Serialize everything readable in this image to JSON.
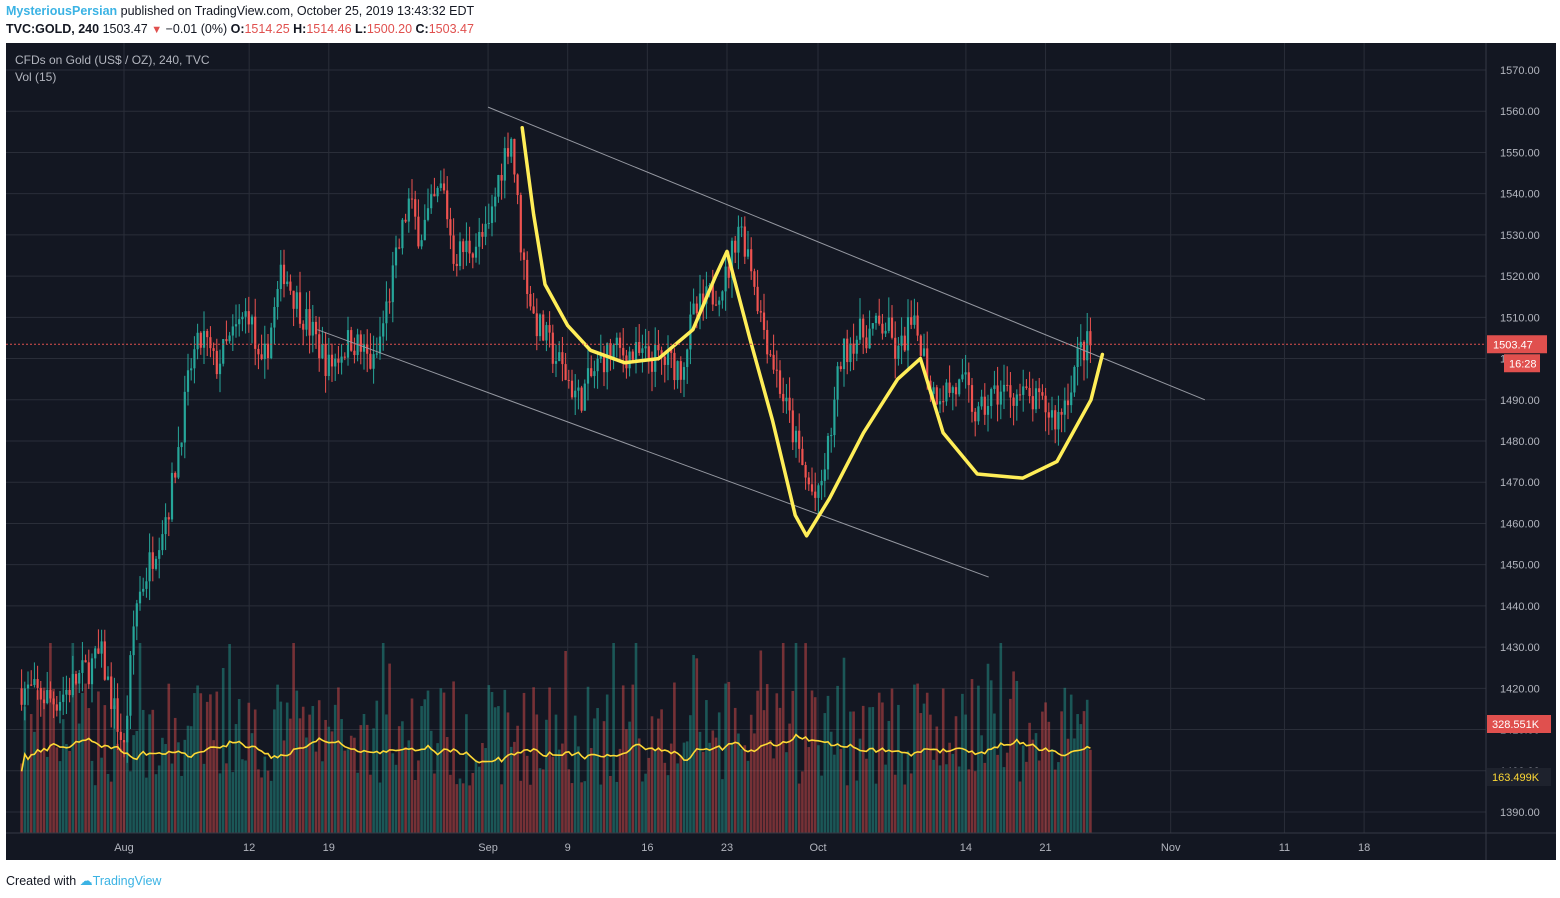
{
  "header": {
    "author": "MysteriousPersian",
    "published_text": "published on TradingView.com, October 25, 2019 13:43:32 EDT",
    "symbol": "TVC:GOLD, 240",
    "last": "1503.47",
    "change": "−0.01 (0%)",
    "open_label": "O:",
    "open": "1514.25",
    "high_label": "H:",
    "high": "1514.46",
    "low_label": "L:",
    "low": "1500.20",
    "close_label": "C:",
    "close": "1503.47"
  },
  "legend": {
    "title": "CFDs on Gold (US$ / OZ), 240, TVC",
    "vol": "Vol (15)"
  },
  "footer": {
    "created": "Created with",
    "brand": "TradingView"
  },
  "colors": {
    "background": "#131722",
    "grid": "#2a2e39",
    "up": "#26a69a",
    "down": "#ef5350",
    "drawing": "#ffee58",
    "trendline": "#9598a1",
    "axis_text": "#b2b5be",
    "price_label": "#e0504e",
    "vol_ma_label": "#fdd835"
  },
  "chart_data": {
    "type": "candlestick",
    "title": "CFDs on Gold (US$ / OZ), 240, TVC",
    "ylim": [
      1385,
      1575
    ],
    "y_ticks": [
      1390,
      1400,
      1410,
      1420,
      1430,
      1440,
      1450,
      1460,
      1470,
      1480,
      1490,
      1500,
      1510,
      1520,
      1530,
      1540,
      1550,
      1560,
      1570
    ],
    "y_tick_labels": [
      "1390.00",
      "1400.00",
      "1410.00",
      "1420.00",
      "1430.00",
      "1440.00",
      "1450.00",
      "1460.00",
      "1470.00",
      "1480.00",
      "1490.00",
      "1500.00",
      "1510.00",
      "1520.00",
      "1530.00",
      "1540.00",
      "1550.00",
      "1560.00",
      "1570.00"
    ],
    "x_ticks": [
      {
        "label": "Aug",
        "date": "2019-08-01"
      },
      {
        "label": "12",
        "date": "2019-08-12"
      },
      {
        "label": "19",
        "date": "2019-08-19"
      },
      {
        "label": "Sep",
        "date": "2019-09-02"
      },
      {
        "label": "9",
        "date": "2019-09-09"
      },
      {
        "label": "16",
        "date": "2019-09-16"
      },
      {
        "label": "23",
        "date": "2019-09-23"
      },
      {
        "label": "Oct",
        "date": "2019-10-01"
      },
      {
        "label": "14",
        "date": "2019-10-14"
      },
      {
        "label": "21",
        "date": "2019-10-21"
      },
      {
        "label": "Nov",
        "date": "2019-11-01"
      },
      {
        "label": "11",
        "date": "2019-11-11"
      },
      {
        "label": "18",
        "date": "2019-11-18"
      }
    ],
    "price_path": [
      {
        "date": "2019-07-23",
        "price": 1420
      },
      {
        "date": "2019-07-26",
        "price": 1417
      },
      {
        "date": "2019-07-30",
        "price": 1428
      },
      {
        "date": "2019-08-01",
        "price": 1405
      },
      {
        "date": "2019-08-02",
        "price": 1440
      },
      {
        "date": "2019-08-05",
        "price": 1465
      },
      {
        "date": "2019-08-07",
        "price": 1500
      },
      {
        "date": "2019-08-08",
        "price": 1505
      },
      {
        "date": "2019-08-09",
        "price": 1498
      },
      {
        "date": "2019-08-12",
        "price": 1512
      },
      {
        "date": "2019-08-13",
        "price": 1495
      },
      {
        "date": "2019-08-15",
        "price": 1522
      },
      {
        "date": "2019-08-16",
        "price": 1515
      },
      {
        "date": "2019-08-19",
        "price": 1498
      },
      {
        "date": "2019-08-21",
        "price": 1505
      },
      {
        "date": "2019-08-23",
        "price": 1498
      },
      {
        "date": "2019-08-26",
        "price": 1538
      },
      {
        "date": "2019-08-27",
        "price": 1530
      },
      {
        "date": "2019-08-29",
        "price": 1542
      },
      {
        "date": "2019-08-30",
        "price": 1525
      },
      {
        "date": "2019-09-02",
        "price": 1530
      },
      {
        "date": "2019-09-03",
        "price": 1545
      },
      {
        "date": "2019-09-04",
        "price": 1555
      },
      {
        "date": "2019-09-05",
        "price": 1525
      },
      {
        "date": "2019-09-06",
        "price": 1510
      },
      {
        "date": "2019-09-09",
        "price": 1495
      },
      {
        "date": "2019-09-10",
        "price": 1490
      },
      {
        "date": "2019-09-12",
        "price": 1500
      },
      {
        "date": "2019-09-13",
        "price": 1502
      },
      {
        "date": "2019-09-16",
        "price": 1500
      },
      {
        "date": "2019-09-17",
        "price": 1500
      },
      {
        "date": "2019-09-19",
        "price": 1498
      },
      {
        "date": "2019-09-20",
        "price": 1510
      },
      {
        "date": "2019-09-23",
        "price": 1520
      },
      {
        "date": "2019-09-24",
        "price": 1533
      },
      {
        "date": "2019-09-25",
        "price": 1525
      },
      {
        "date": "2019-09-26",
        "price": 1510
      },
      {
        "date": "2019-09-27",
        "price": 1500
      },
      {
        "date": "2019-09-30",
        "price": 1470
      },
      {
        "date": "2019-10-01",
        "price": 1465
      },
      {
        "date": "2019-10-02",
        "price": 1480
      },
      {
        "date": "2019-10-03",
        "price": 1500
      },
      {
        "date": "2019-10-04",
        "price": 1505
      },
      {
        "date": "2019-10-07",
        "price": 1508
      },
      {
        "date": "2019-10-08",
        "price": 1500
      },
      {
        "date": "2019-10-09",
        "price": 1508
      },
      {
        "date": "2019-10-10",
        "price": 1505
      },
      {
        "date": "2019-10-11",
        "price": 1492
      },
      {
        "date": "2019-10-14",
        "price": 1493
      },
      {
        "date": "2019-10-15",
        "price": 1485
      },
      {
        "date": "2019-10-16",
        "price": 1490
      },
      {
        "date": "2019-10-17",
        "price": 1492
      },
      {
        "date": "2019-10-18",
        "price": 1492
      },
      {
        "date": "2019-10-21",
        "price": 1488
      },
      {
        "date": "2019-10-22",
        "price": 1485
      },
      {
        "date": "2019-10-23",
        "price": 1492
      },
      {
        "date": "2019-10-24",
        "price": 1502
      },
      {
        "date": "2019-10-25",
        "price": 1503.47
      }
    ],
    "last_price": 1503.47,
    "last_price_label": "1503.47",
    "countdown_label": "16:28",
    "volume_label": "328.551K",
    "volume_ma_label": "163.499K",
    "annotations": [
      {
        "type": "trendline",
        "from": {
          "date": "2019-09-02",
          "price": 1561
        },
        "to": {
          "date": "2019-11-04",
          "price": 1490
        }
      },
      {
        "type": "trendline",
        "from": {
          "date": "2019-08-18",
          "price": 1507
        },
        "to": {
          "date": "2019-10-16",
          "price": 1447
        }
      },
      {
        "type": "freehand",
        "shape": "cup-and-handle / head-and-shoulders drawing"
      }
    ]
  }
}
